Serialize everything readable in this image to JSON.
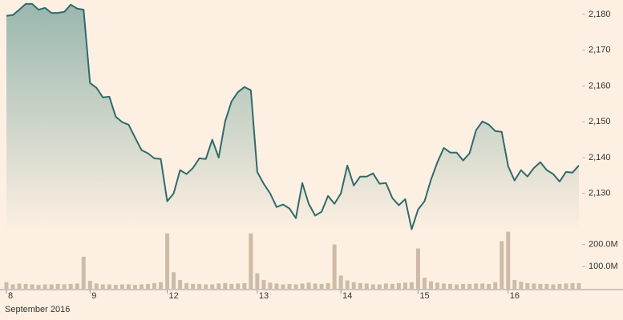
{
  "chart_data": [
    {
      "type": "area",
      "color": "#2f6b6a",
      "values": [
        2179.6,
        2179.8,
        2181.3,
        2182.9,
        2182.9,
        2181.3,
        2181.8,
        2180.4,
        2180.4,
        2180.7,
        2182.7,
        2181.6,
        2181.3,
        2160.8,
        2159.5,
        2156.8,
        2157.0,
        2151.4,
        2149.9,
        2149.2,
        2145.6,
        2142.1,
        2141.2,
        2139.8,
        2139.6,
        2127.8,
        2130.0,
        2136.5,
        2135.4,
        2137.1,
        2139.8,
        2139.6,
        2145.0,
        2140.0,
        2150.1,
        2155.7,
        2158.3,
        2159.7,
        2158.8,
        2136.0,
        2132.7,
        2130.0,
        2126.2,
        2126.9,
        2125.8,
        2123.1,
        2132.9,
        2127.1,
        2123.8,
        2124.9,
        2129.3,
        2127.1,
        2130.0,
        2137.8,
        2132.2,
        2134.7,
        2134.7,
        2135.6,
        2132.7,
        2132.9,
        2128.7,
        2126.7,
        2128.4,
        2120.0,
        2125.5,
        2127.8,
        2133.8,
        2138.7,
        2142.7,
        2141.4,
        2141.4,
        2139.2,
        2141.2,
        2147.6,
        2150.1,
        2149.2,
        2147.4,
        2147.2,
        2137.6,
        2133.6,
        2136.5,
        2134.7,
        2137.1,
        2138.7,
        2136.5,
        2135.4,
        2133.3,
        2136.0,
        2135.8,
        2137.8
      ],
      "ylim": [
        2119,
        2184
      ],
      "yticks": [
        {
          "value": 2130,
          "label": "2,130"
        },
        {
          "value": 2140,
          "label": "2,140"
        },
        {
          "value": 2150,
          "label": "2,150"
        },
        {
          "value": 2160,
          "label": "2,160"
        },
        {
          "value": 2170,
          "label": "2,170"
        },
        {
          "value": 2180,
          "label": "2,180"
        }
      ]
    },
    {
      "type": "bar",
      "color": "#cdbba8",
      "xlabel": "September 2016",
      "categories": [
        "8",
        null,
        null,
        null,
        null,
        null,
        null,
        null,
        null,
        null,
        null,
        null,
        null,
        "9",
        null,
        null,
        null,
        null,
        null,
        null,
        null,
        null,
        null,
        null,
        null,
        "12",
        null,
        null,
        null,
        null,
        null,
        null,
        null,
        null,
        null,
        null,
        null,
        null,
        null,
        "13",
        null,
        null,
        null,
        null,
        null,
        null,
        null,
        null,
        null,
        null,
        null,
        null,
        "14",
        null,
        null,
        null,
        null,
        null,
        null,
        null,
        null,
        null,
        null,
        null,
        "15",
        null,
        null,
        null,
        null,
        null,
        null,
        null,
        null,
        null,
        null,
        null,
        null,
        null,
        "16",
        null,
        null,
        null,
        null,
        null,
        null,
        null,
        null,
        null,
        null,
        null
      ],
      "values": [
        30000000,
        20000000,
        24000000,
        22000000,
        20000000,
        18000000,
        20000000,
        20000000,
        22000000,
        20000000,
        22000000,
        24000000,
        145000000,
        36000000,
        24000000,
        20000000,
        20000000,
        18000000,
        20000000,
        20000000,
        18000000,
        20000000,
        22000000,
        26000000,
        30000000,
        250000000,
        75000000,
        40000000,
        26000000,
        22000000,
        22000000,
        20000000,
        20000000,
        24000000,
        26000000,
        22000000,
        24000000,
        26000000,
        250000000,
        70000000,
        40000000,
        28000000,
        24000000,
        20000000,
        22000000,
        20000000,
        24000000,
        28000000,
        24000000,
        22000000,
        26000000,
        200000000,
        60000000,
        38000000,
        30000000,
        26000000,
        24000000,
        20000000,
        20000000,
        24000000,
        22000000,
        26000000,
        28000000,
        30000000,
        182000000,
        50000000,
        34000000,
        28000000,
        24000000,
        22000000,
        20000000,
        22000000,
        22000000,
        24000000,
        24000000,
        22000000,
        30000000,
        215000000,
        258000000,
        40000000,
        32000000,
        26000000,
        24000000,
        22000000,
        22000000,
        20000000,
        22000000,
        24000000,
        26000000,
        26000000
      ],
      "ylim": [
        0,
        260000000
      ],
      "yticks": [
        {
          "value": 100000000,
          "label": "100.0M"
        },
        {
          "value": 200000000,
          "label": "200.0M"
        }
      ]
    }
  ]
}
